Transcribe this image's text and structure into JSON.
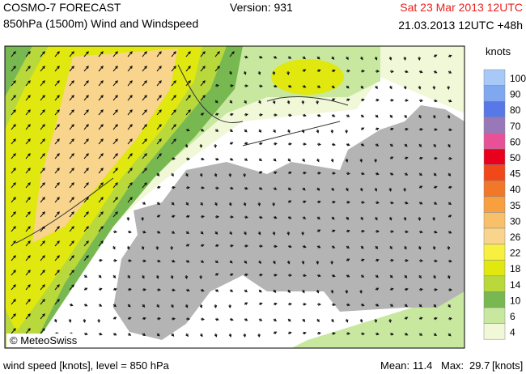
{
  "header": {
    "model": "COSMO-7 FORECAST",
    "field": "850hPa (1500m) Wind and Windspeed",
    "version": "Version: 931",
    "valid": "Sat 23 Mar 2013 12UTC",
    "run": "21.03.2013 12UTC +48h"
  },
  "legend": {
    "title": "knots",
    "levels": [
      {
        "value": 100,
        "color": "#a8c8f8"
      },
      {
        "value": 90,
        "color": "#80a8f0"
      },
      {
        "value": 80,
        "color": "#5878e8"
      },
      {
        "value": 70,
        "color": "#9878b8"
      },
      {
        "value": 60,
        "color": "#e85098"
      },
      {
        "value": 50,
        "color": "#e8001c"
      },
      {
        "value": 45,
        "color": "#f04818"
      },
      {
        "value": 40,
        "color": "#f07828"
      },
      {
        "value": 35,
        "color": "#f8a040"
      },
      {
        "value": 30,
        "color": "#f8c068"
      },
      {
        "value": 26,
        "color": "#f8d48c"
      },
      {
        "value": 22,
        "color": "#f8f040"
      },
      {
        "value": 18,
        "color": "#e0e810"
      },
      {
        "value": 14,
        "color": "#b8d83c"
      },
      {
        "value": 10,
        "color": "#78b850"
      },
      {
        "value": 6,
        "color": "#c8e8a0"
      },
      {
        "value": 4,
        "color": "#f0f8d8"
      }
    ]
  },
  "credit": "© MeteoSwiss",
  "footer": {
    "description": "wind speed [knots], level = 850 hPa",
    "mean_label": "Mean:",
    "mean": 11.4,
    "max_label": "Max:",
    "max": 29.7,
    "unit": "[knots]"
  }
}
